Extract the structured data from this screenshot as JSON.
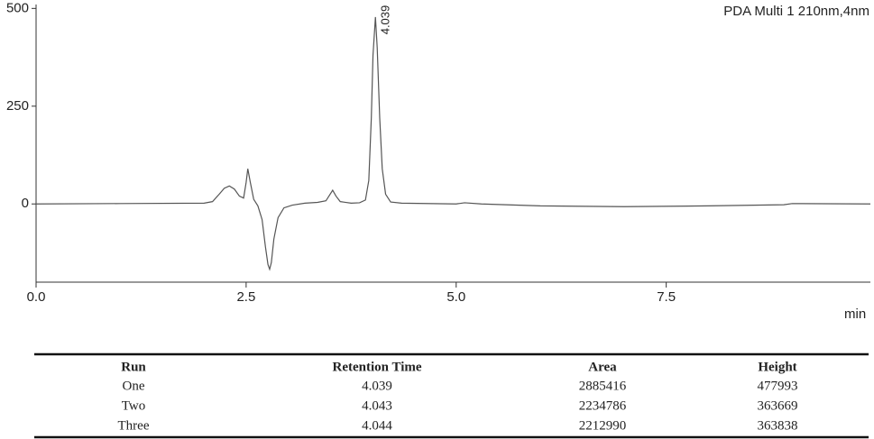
{
  "chart_data": {
    "type": "line",
    "xlabel": "min",
    "annotation": "4.039",
    "annotation_x": 4.039,
    "x": [
      0,
      1,
      2.0,
      2.1,
      2.18,
      2.24,
      2.3,
      2.36,
      2.42,
      2.47,
      2.5,
      2.52,
      2.55,
      2.59,
      2.64,
      2.69,
      2.73,
      2.76,
      2.78,
      2.8,
      2.83,
      2.88,
      2.95,
      3.05,
      3.2,
      3.35,
      3.45,
      3.5,
      3.53,
      3.57,
      3.62,
      3.75,
      3.85,
      3.92,
      3.96,
      3.99,
      4.01,
      4.039,
      4.06,
      4.09,
      4.12,
      4.16,
      4.22,
      4.35,
      5.0,
      5.1,
      5.3,
      6.0,
      7.0,
      8.0,
      8.9,
      9.0,
      9.93
    ],
    "series": [
      {
        "name": "PDA Multi 1 210nm,4nm",
        "color": "#555555",
        "values": [
          0,
          1,
          2,
          6,
          25,
          40,
          46,
          38,
          20,
          15,
          55,
          90,
          55,
          12,
          -5,
          -40,
          -110,
          -155,
          -167,
          -150,
          -90,
          -35,
          -10,
          -3,
          2,
          4,
          8,
          25,
          35,
          20,
          6,
          2,
          3,
          10,
          60,
          220,
          380,
          478,
          400,
          220,
          90,
          25,
          5,
          2,
          0,
          3,
          0,
          -5,
          -7,
          -5,
          -2,
          1,
          0
        ]
      }
    ],
    "xlim": [
      0,
      9.93
    ],
    "ylim": [
      -200,
      510
    ],
    "xticks": [
      {
        "value": 0,
        "label": "0.0"
      },
      2.5,
      {
        "value": 5,
        "label": "5.0"
      },
      7.5
    ],
    "yticks": [
      0,
      250,
      500
    ]
  },
  "table": {
    "header": [
      "Run",
      "Retention Time",
      "Area",
      "Height"
    ],
    "rows": [
      [
        "One",
        "4.039",
        "2885416",
        "477993"
      ],
      [
        "Two",
        "4.043",
        "2234786",
        "363669"
      ],
      [
        "Three",
        "4.044",
        "2212990",
        "363838"
      ]
    ]
  }
}
